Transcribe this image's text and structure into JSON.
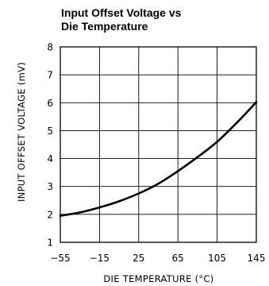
{
  "chart_data": {
    "type": "line",
    "title_lines": [
      "Input Offset Voltage vs",
      "Die Temperature"
    ],
    "xlabel": "DIE TEMPERATURE (°C)",
    "ylabel": "INPUT OFFSET VOLTAGE (mV)",
    "xlim": [
      -55,
      145
    ],
    "ylim": [
      1,
      8
    ],
    "x_ticks": [
      -55,
      -15,
      25,
      65,
      105,
      145
    ],
    "x_tick_labels": [
      "−55",
      "−15",
      "25",
      "65",
      "105",
      "145"
    ],
    "y_ticks": [
      1,
      2,
      3,
      4,
      5,
      6,
      7,
      8
    ],
    "y_tick_labels": [
      "1",
      "2",
      "3",
      "4",
      "5",
      "6",
      "7",
      "8"
    ],
    "grid": true,
    "legend": "none",
    "series": [
      {
        "x": [
          -55,
          -35,
          -15,
          5,
          25,
          45,
          65,
          85,
          105,
          125,
          145
        ],
        "y": [
          1.95,
          2.07,
          2.25,
          2.47,
          2.75,
          3.1,
          3.55,
          4.05,
          4.6,
          5.28,
          6.02
        ],
        "color": "#000000"
      }
    ]
  }
}
